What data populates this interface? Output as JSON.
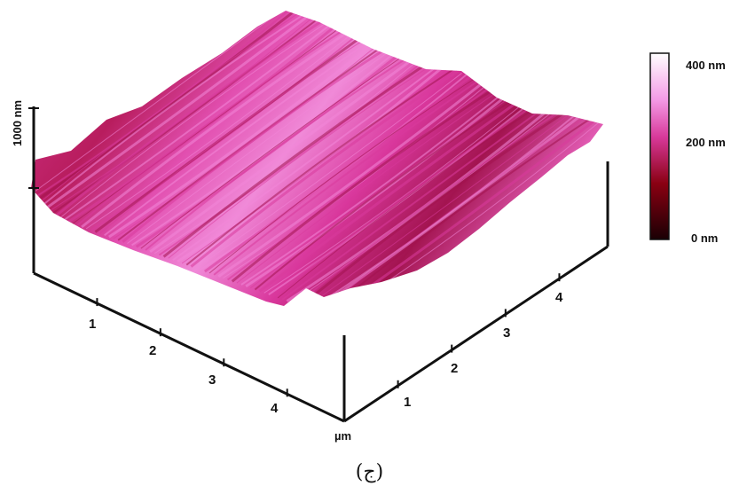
{
  "figure": {
    "caption": "(ج)",
    "z_scale_label": "1000 nm",
    "axis_unit": "µm",
    "x_ticks": [
      "1",
      "2",
      "3",
      "4"
    ],
    "y_ticks": [
      "1",
      "2",
      "3",
      "4"
    ],
    "colorbar": {
      "labels": [
        "400 nm",
        "200 nm",
        "0 nm"
      ],
      "colors": [
        "#1a0004",
        "#8a0012",
        "#d8399a",
        "#f49ae6",
        "#ffffff"
      ]
    },
    "surface_colors": {
      "light": "#f287d8",
      "mid": "#d93a9c",
      "dark": "#a3134f"
    }
  }
}
